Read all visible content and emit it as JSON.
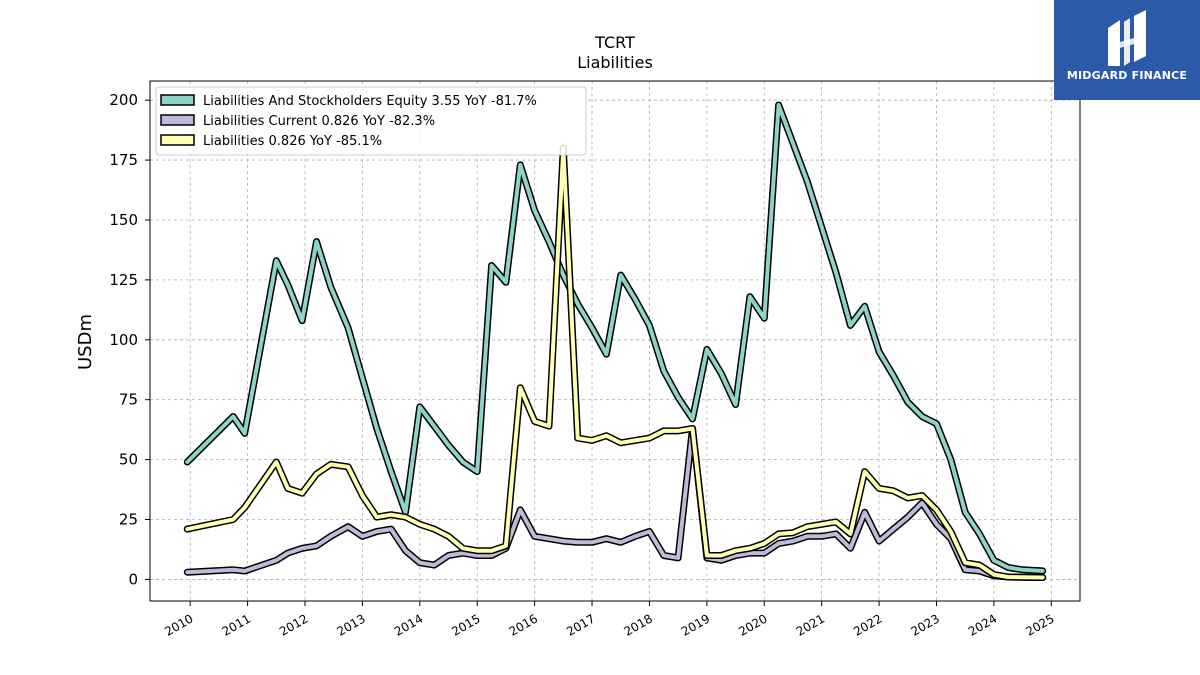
{
  "brand": {
    "name": "MIDGARD FINANCE",
    "bg_color": "#2d5aa8"
  },
  "chart_data": {
    "type": "line",
    "title": "TCRT",
    "subtitle": "Liabilities",
    "xlabel": "",
    "ylabel": "USDm",
    "xlim": [
      2009.3,
      2025.5
    ],
    "ylim": [
      -9,
      208
    ],
    "yticks": [
      0,
      25,
      50,
      75,
      100,
      125,
      150,
      175,
      200
    ],
    "xticks": [
      2010,
      2011,
      2012,
      2013,
      2014,
      2015,
      2016,
      2017,
      2018,
      2019,
      2020,
      2021,
      2022,
      2023,
      2024,
      2025
    ],
    "grid": true,
    "legend_position": "top-left",
    "series": [
      {
        "name": "Liabilities And Stockholders Equity  3.55 YoY -81.7%",
        "color": "#8dd3c7",
        "x": [
          2009.95,
          2010.75,
          2010.95,
          2011.5,
          2011.7,
          2011.95,
          2012.2,
          2012.45,
          2012.75,
          2013.0,
          2013.25,
          2013.5,
          2013.75,
          2014.0,
          2014.25,
          2014.5,
          2014.75,
          2015.0,
          2015.25,
          2015.5,
          2015.75,
          2016.0,
          2016.25,
          2016.5,
          2016.75,
          2017.0,
          2017.25,
          2017.5,
          2017.75,
          2018.0,
          2018.25,
          2018.5,
          2018.75,
          2019.0,
          2019.25,
          2019.5,
          2019.75,
          2020.0,
          2020.25,
          2020.5,
          2020.75,
          2021.0,
          2021.25,
          2021.5,
          2021.75,
          2022.0,
          2022.25,
          2022.5,
          2022.75,
          2023.0,
          2023.25,
          2023.5,
          2023.75,
          2024.0,
          2024.25,
          2024.5,
          2024.85
        ],
        "values": [
          49,
          68,
          61,
          133,
          123,
          108,
          141,
          122,
          105,
          84,
          63,
          45,
          28,
          72,
          64,
          56,
          49,
          45,
          131,
          124,
          173,
          154,
          141,
          127,
          115,
          105,
          94,
          127,
          117,
          106,
          87,
          76,
          67,
          96,
          86,
          73,
          118,
          109,
          198,
          182,
          166,
          147,
          128,
          106,
          114,
          95,
          85,
          74,
          68,
          65,
          50,
          28,
          19,
          8,
          5,
          4,
          3.55
        ]
      },
      {
        "name": "Liabilities Current  0.826 YoY -82.3%",
        "color": "#bebada",
        "x": [
          2009.95,
          2010.75,
          2010.95,
          2011.5,
          2011.7,
          2011.95,
          2012.2,
          2012.45,
          2012.75,
          2013.0,
          2013.25,
          2013.5,
          2013.75,
          2014.0,
          2014.25,
          2014.5,
          2014.75,
          2015.0,
          2015.25,
          2015.5,
          2015.75,
          2016.0,
          2016.25,
          2016.5,
          2016.75,
          2017.0,
          2017.25,
          2017.5,
          2017.75,
          2018.0,
          2018.25,
          2018.5,
          2018.75,
          2019.0,
          2019.25,
          2019.5,
          2019.75,
          2020.0,
          2020.25,
          2020.5,
          2020.75,
          2021.0,
          2021.25,
          2021.5,
          2021.75,
          2022.0,
          2022.25,
          2022.5,
          2022.75,
          2023.0,
          2023.25,
          2023.5,
          2023.75,
          2024.0,
          2024.25,
          2024.5,
          2024.85
        ],
        "values": [
          3,
          4,
          3.5,
          8,
          11,
          13,
          14,
          18,
          22,
          18,
          20,
          21,
          12,
          7,
          6,
          10,
          11,
          10,
          10,
          13,
          29,
          18,
          17,
          16,
          15.5,
          15.5,
          17,
          15.5,
          18,
          20,
          10,
          9,
          63,
          9,
          8,
          10,
          11,
          11,
          15,
          16,
          18,
          18,
          19,
          13,
          28,
          16,
          21,
          26,
          32,
          23,
          17,
          4,
          3.5,
          1.5,
          1,
          0.9,
          0.826
        ]
      },
      {
        "name": "Liabilities  0.826 YoY -85.1%",
        "color": "#ffffb3",
        "x": [
          2009.95,
          2010.75,
          2010.95,
          2011.5,
          2011.7,
          2011.95,
          2012.2,
          2012.45,
          2012.75,
          2013.0,
          2013.25,
          2013.5,
          2013.75,
          2014.0,
          2014.25,
          2014.5,
          2014.75,
          2015.0,
          2015.25,
          2015.5,
          2015.75,
          2016.0,
          2016.25,
          2016.5,
          2016.75,
          2017.0,
          2017.25,
          2017.5,
          2017.75,
          2018.0,
          2018.25,
          2018.5,
          2018.75,
          2019.0,
          2019.25,
          2019.5,
          2019.75,
          2020.0,
          2020.25,
          2020.5,
          2020.75,
          2021.0,
          2021.25,
          2021.5,
          2021.75,
          2022.0,
          2022.25,
          2022.5,
          2022.75,
          2023.0,
          2023.25,
          2023.5,
          2023.75,
          2024.0,
          2024.25,
          2024.5,
          2024.85
        ],
        "values": [
          21,
          25,
          30,
          49,
          38,
          36,
          44,
          48,
          47,
          35,
          26,
          27,
          26,
          23,
          21,
          18,
          13,
          12,
          12,
          14,
          80,
          66,
          64,
          180,
          59,
          58,
          60,
          57,
          58,
          59,
          62,
          62,
          63,
          10,
          10,
          12,
          13,
          15,
          19,
          19.5,
          22,
          23,
          24,
          19,
          45,
          38,
          37,
          34,
          35,
          29,
          20,
          7,
          6,
          2,
          1,
          0.9,
          0.826
        ]
      }
    ]
  }
}
